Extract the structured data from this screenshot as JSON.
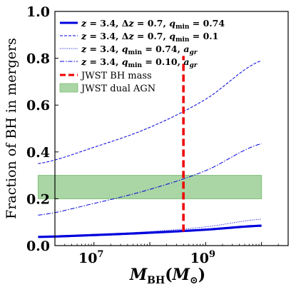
{
  "chart_data": {
    "type": "line",
    "xlabel": "M_BH(M_⊙)",
    "ylabel": "Fraction of BH in mergers",
    "xscale": "log",
    "xlim": [
      2000000,
      30000000000
    ],
    "ylim": [
      0.0,
      1.0
    ],
    "x_ticks": [
      {
        "value": 10000000,
        "base": "10",
        "exp": "7"
      },
      {
        "value": 1000000000,
        "base": "10",
        "exp": "9"
      }
    ],
    "y_ticks": [
      "0.0",
      "0.2",
      "0.4",
      "0.6",
      "0.8",
      "1.0"
    ],
    "legend_position": "top-left",
    "series": [
      {
        "name": "z = 3.4, Δz = 0.7, q_min = 0.74",
        "style": "solid-thick",
        "color": "#0000dd",
        "x": [
          1000000,
          10000000,
          100000000,
          1000000000,
          10000000000
        ],
        "y": [
          0.037,
          0.045,
          0.055,
          0.068,
          0.085
        ]
      },
      {
        "name": "z = 3.4, Δz = 0.7, q_min = 0.1",
        "style": "dashed",
        "color": "#0000dd",
        "x": [
          1000000,
          10000000,
          100000000,
          1000000000,
          10000000000
        ],
        "y": [
          0.35,
          0.42,
          0.505,
          0.625,
          0.79
        ]
      },
      {
        "name": "z = 3.4, q_min = 0.74, a_gr",
        "style": "dotted",
        "color": "#0000dd",
        "x": [
          1000000,
          10000000,
          100000000,
          1000000000,
          10000000000
        ],
        "y": [
          0.038,
          0.048,
          0.06,
          0.08,
          0.113
        ]
      },
      {
        "name": "z = 3.4, q_min = 0.10, a_gr",
        "style": "dashdot",
        "color": "#0000dd",
        "x": [
          1000000,
          10000000,
          100000000,
          1000000000,
          10000000000
        ],
        "y": [
          0.13,
          0.18,
          0.24,
          0.32,
          0.435
        ]
      }
    ],
    "vline": {
      "name": "JWST BH mass",
      "x": 400000000,
      "color": "#ee0000"
    },
    "band": {
      "name": "JWST dual AGN",
      "x0": 1000000,
      "x1": 10000000000,
      "y0": 0.2,
      "y1": 0.3,
      "color": "#a9d6a4"
    }
  }
}
